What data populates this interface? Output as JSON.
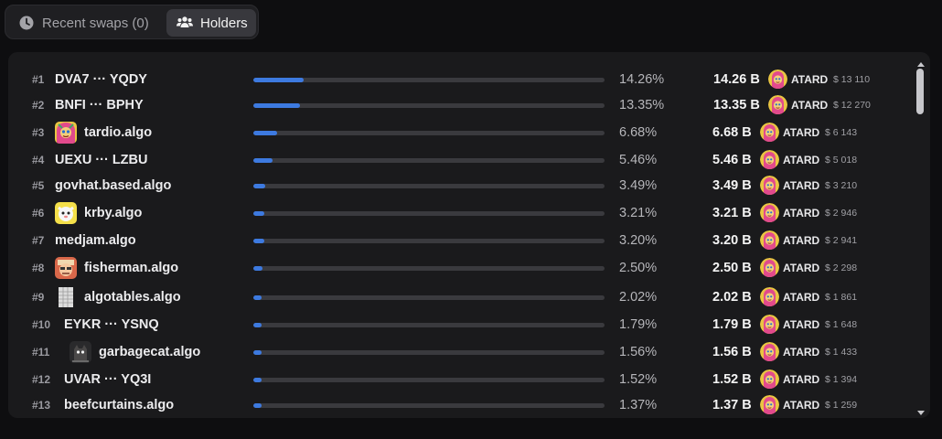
{
  "tabs": [
    {
      "label": "Recent swaps (0)",
      "icon": "clock-icon",
      "active": false
    },
    {
      "label": "Holders",
      "icon": "users-icon",
      "active": true
    }
  ],
  "accent": "#3d7ae0",
  "holders": [
    {
      "rank": "#1",
      "name": "DVA7 ··· YQDY",
      "avatar": null,
      "percent": "14.26%",
      "share": 14.26,
      "amount": "14.26 B",
      "token": "ATARD",
      "usd": "$ 13 110"
    },
    {
      "rank": "#2",
      "name": "BNFI ··· BPHY",
      "avatar": null,
      "percent": "13.35%",
      "share": 13.35,
      "amount": "13.35 B",
      "token": "ATARD",
      "usd": "$ 12 270"
    },
    {
      "rank": "#3",
      "name": "tardio.algo",
      "avatar": "tardio",
      "percent": "6.68%",
      "share": 6.68,
      "amount": "6.68 B",
      "token": "ATARD",
      "usd": "$ 6 143"
    },
    {
      "rank": "#4",
      "name": "UEXU ··· LZBU",
      "avatar": null,
      "percent": "5.46%",
      "share": 5.46,
      "amount": "5.46 B",
      "token": "ATARD",
      "usd": "$ 5 018"
    },
    {
      "rank": "#5",
      "name": "govhat.based.algo",
      "avatar": null,
      "percent": "3.49%",
      "share": 3.49,
      "amount": "3.49 B",
      "token": "ATARD",
      "usd": "$ 3 210"
    },
    {
      "rank": "#6",
      "name": "krby.algo",
      "avatar": "krby",
      "percent": "3.21%",
      "share": 3.21,
      "amount": "3.21 B",
      "token": "ATARD",
      "usd": "$ 2 946"
    },
    {
      "rank": "#7",
      "name": "medjam.algo",
      "avatar": null,
      "percent": "3.20%",
      "share": 3.2,
      "amount": "3.20 B",
      "token": "ATARD",
      "usd": "$ 2 941"
    },
    {
      "rank": "#8",
      "name": "fisherman.algo",
      "avatar": "fisherman",
      "percent": "2.50%",
      "share": 2.5,
      "amount": "2.50 B",
      "token": "ATARD",
      "usd": "$ 2 298"
    },
    {
      "rank": "#9",
      "name": "algotables.algo",
      "avatar": "algotables",
      "percent": "2.02%",
      "share": 2.02,
      "amount": "2.02 B",
      "token": "ATARD",
      "usd": "$ 1 861"
    },
    {
      "rank": "#10",
      "name": "EYKR ··· YSNQ",
      "avatar": null,
      "percent": "1.79%",
      "share": 1.79,
      "amount": "1.79 B",
      "token": "ATARD",
      "usd": "$ 1 648"
    },
    {
      "rank": "#11",
      "name": "garbagecat.algo",
      "avatar": "garbagecat",
      "percent": "1.56%",
      "share": 1.56,
      "amount": "1.56 B",
      "token": "ATARD",
      "usd": "$ 1 433"
    },
    {
      "rank": "#12",
      "name": "UVAR ··· YQ3I",
      "avatar": null,
      "percent": "1.52%",
      "share": 1.52,
      "amount": "1.52 B",
      "token": "ATARD",
      "usd": "$ 1 394"
    },
    {
      "rank": "#13",
      "name": "beefcurtains.algo",
      "avatar": null,
      "percent": "1.37%",
      "share": 1.37,
      "amount": "1.37 B",
      "token": "ATARD",
      "usd": "$ 1 259"
    }
  ]
}
